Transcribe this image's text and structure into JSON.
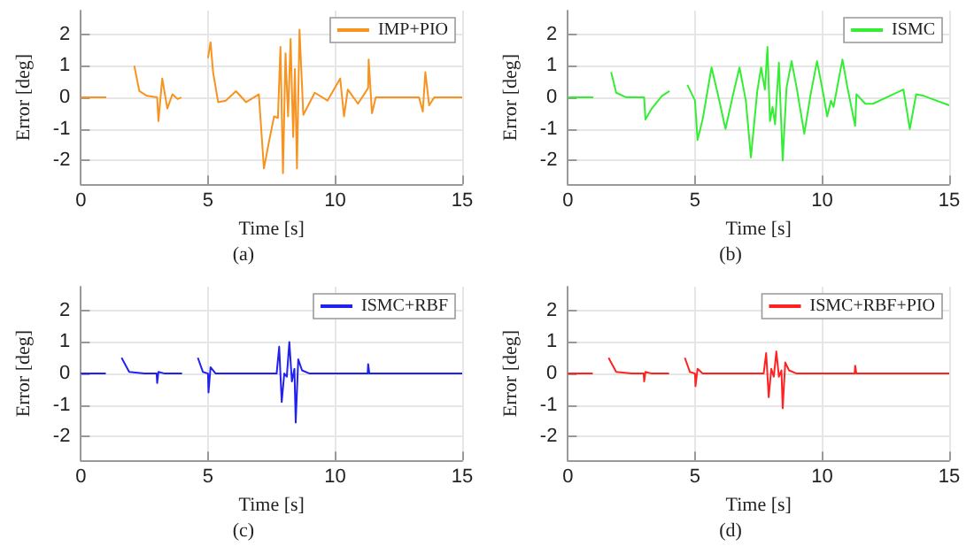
{
  "chart_data": [
    {
      "type": "line",
      "xlabel": "Time [s]",
      "ylabel": "Error [deg]",
      "xlim": [
        0,
        15
      ],
      "ylim": [
        -2.75,
        2.75
      ],
      "xticks": [
        0,
        5,
        10,
        15
      ],
      "yticks": [
        -2,
        -1,
        0,
        1,
        2
      ],
      "grid": true,
      "legend": "top right",
      "annotations": [
        "(a)"
      ],
      "x": [
        0,
        1.0,
        1.02,
        1.08,
        1.38,
        1.42,
        1.7,
        1.96,
        2.1,
        2.3,
        2.6,
        3.0,
        3.05,
        3.2,
        3.4,
        3.6,
        3.8,
        3.95,
        3.97,
        4.05,
        4.1,
        4.12,
        4.25,
        4.4,
        4.42,
        4.7,
        4.98,
        5.0,
        5.1,
        5.2,
        5.4,
        5.7,
        6.1,
        6.5,
        7.0,
        7.2,
        7.4,
        7.6,
        7.75,
        7.85,
        7.95,
        8.05,
        8.15,
        8.25,
        8.35,
        8.42,
        8.5,
        8.6,
        8.75,
        9.2,
        9.7,
        10.2,
        10.35,
        10.5,
        10.9,
        11.3,
        11.32,
        11.45,
        11.6,
        13.3,
        13.45,
        13.55,
        13.7,
        13.9,
        15
      ],
      "series": [
        {
          "name": "IMP+PIO",
          "color": "#f7931e",
          "values": [
            0,
            0,
            null,
            null,
            null,
            null,
            null,
            null,
            1.0,
            0.2,
            0.05,
            0,
            -0.75,
            0.6,
            -0.35,
            0.1,
            -0.05,
            0,
            null,
            null,
            null,
            null,
            null,
            null,
            null,
            null,
            null,
            1.25,
            1.75,
            0.8,
            -0.15,
            -0.1,
            0.2,
            -0.15,
            0.1,
            -2.25,
            -1.4,
            -0.6,
            -0.65,
            1.6,
            -2.4,
            1.4,
            -0.6,
            1.85,
            -1.25,
            0.9,
            -2.25,
            2.15,
            -0.55,
            0.15,
            -0.1,
            0.6,
            -0.6,
            0.25,
            -0.2,
            0.3,
            1.2,
            -0.5,
            0,
            0,
            -0.45,
            0.8,
            -0.25,
            0,
            0
          ]
        }
      ]
    },
    {
      "type": "line",
      "xlabel": "Time [s]",
      "ylabel": "Error [deg]",
      "xlim": [
        0,
        15
      ],
      "ylim": [
        -2.75,
        2.75
      ],
      "xticks": [
        0,
        5,
        10,
        15
      ],
      "yticks": [
        -2,
        -1,
        0,
        1,
        2
      ],
      "grid": true,
      "legend": "top right",
      "annotations": [
        "(b)"
      ],
      "x": [
        0,
        1.0,
        1.02,
        1.2,
        1.5,
        1.7,
        1.9,
        2.3,
        3.0,
        3.05,
        3.3,
        3.7,
        4.0,
        4.02,
        4.3,
        4.55,
        4.7,
        5.0,
        5.1,
        5.3,
        5.65,
        5.9,
        6.2,
        6.5,
        6.75,
        7.0,
        7.2,
        7.45,
        7.6,
        7.75,
        7.85,
        7.95,
        8.05,
        8.15,
        8.3,
        8.45,
        8.6,
        8.8,
        9.0,
        9.3,
        9.55,
        9.8,
        10.05,
        10.2,
        10.35,
        10.45,
        10.8,
        11.0,
        11.3,
        11.35,
        11.7,
        12.0,
        13.2,
        13.45,
        13.7,
        14.0,
        15
      ],
      "series": [
        {
          "name": "ISMC",
          "color": "#33ee33",
          "values": [
            0,
            0,
            null,
            null,
            null,
            0.8,
            0.15,
            0,
            0,
            -0.7,
            -0.35,
            0.05,
            0.2,
            null,
            null,
            null,
            0.4,
            -0.1,
            -1.35,
            -0.7,
            0.95,
            0.1,
            -1.0,
            0.1,
            0.95,
            -0.1,
            -1.9,
            0.2,
            0.95,
            0.25,
            1.6,
            -0.75,
            -0.3,
            -0.85,
            1.1,
            -2.0,
            0.3,
            1.15,
            0.3,
            -1.15,
            0.1,
            1.15,
            0.1,
            -0.6,
            -0.1,
            -0.3,
            1.2,
            0.3,
            -0.9,
            0.1,
            -0.2,
            -0.2,
            0.25,
            -1.0,
            0.1,
            0.05,
            -0.25
          ]
        }
      ]
    },
    {
      "type": "line",
      "xlabel": "Time [s]",
      "ylabel": "Error [deg]",
      "xlim": [
        0,
        15
      ],
      "ylim": [
        -2.75,
        2.75
      ],
      "xticks": [
        0,
        5,
        10,
        15
      ],
      "yticks": [
        -2,
        -1,
        0,
        1,
        2
      ],
      "grid": true,
      "legend": "top right",
      "annotations": [
        "(c)"
      ],
      "x": [
        0,
        0.98,
        1.0,
        1.2,
        1.45,
        1.6,
        1.9,
        2.5,
        2.98,
        3.0,
        3.05,
        3.3,
        3.98,
        4.0,
        4.2,
        4.45,
        4.6,
        4.8,
        5.0,
        5.02,
        5.1,
        5.3,
        7.7,
        7.8,
        7.9,
        8.0,
        8.1,
        8.2,
        8.3,
        8.4,
        8.45,
        8.55,
        8.7,
        9,
        11.28,
        11.3,
        11.35,
        15
      ],
      "series": [
        {
          "name": "ISMC+RBF",
          "color": "#2222ee",
          "values": [
            0,
            0,
            null,
            null,
            null,
            0.5,
            0.05,
            0,
            0,
            -0.3,
            0.05,
            0,
            0,
            null,
            null,
            null,
            0.5,
            0.05,
            0,
            -0.6,
            0.2,
            0,
            0,
            0.85,
            -0.9,
            0,
            -0.1,
            1.0,
            -0.25,
            0.15,
            -1.55,
            0.45,
            0.1,
            0,
            0,
            0.3,
            0,
            0
          ]
        }
      ]
    },
    {
      "type": "line",
      "xlabel": "Time [s]",
      "ylabel": "Error [deg]",
      "xlim": [
        0,
        15
      ],
      "ylim": [
        -2.75,
        2.75
      ],
      "xticks": [
        0,
        5,
        10,
        15
      ],
      "yticks": [
        -2,
        -1,
        0,
        1,
        2
      ],
      "grid": true,
      "legend": "top right",
      "annotations": [
        "(d)"
      ],
      "x": [
        0,
        0.98,
        1.0,
        1.2,
        1.45,
        1.6,
        1.9,
        2.5,
        2.98,
        3.0,
        3.05,
        3.3,
        3.98,
        4.0,
        4.2,
        4.45,
        4.6,
        4.8,
        5.0,
        5.02,
        5.1,
        5.3,
        7.7,
        7.8,
        7.9,
        8.0,
        8.1,
        8.2,
        8.3,
        8.4,
        8.45,
        8.55,
        8.7,
        9,
        11.28,
        11.3,
        11.35,
        15
      ],
      "series": [
        {
          "name": "ISMC+RBF+PIO",
          "color": "#ff2222",
          "values": [
            0,
            0,
            null,
            null,
            null,
            0.5,
            0.05,
            0,
            0,
            -0.25,
            0.05,
            0,
            0,
            null,
            null,
            null,
            0.5,
            0.05,
            0,
            -0.4,
            0.15,
            0,
            0,
            0.65,
            -0.75,
            0.15,
            -0.1,
            0.7,
            -0.1,
            0.1,
            -1.1,
            0.35,
            0.1,
            0,
            0,
            0.25,
            0,
            0
          ]
        }
      ]
    }
  ]
}
